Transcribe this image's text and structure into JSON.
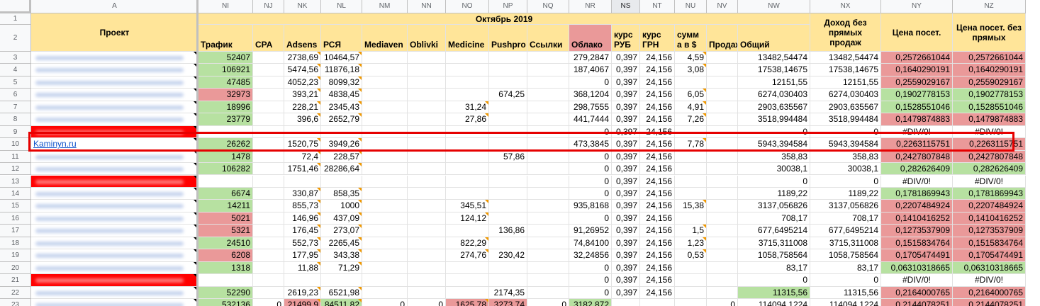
{
  "columns": [
    {
      "letter": "A",
      "width": 236
    },
    {
      "letter": "NI",
      "width": 77
    },
    {
      "letter": "NJ",
      "width": 44
    },
    {
      "letter": "NK",
      "width": 52
    },
    {
      "letter": "NL",
      "width": 58
    },
    {
      "letter": "NM",
      "width": 64
    },
    {
      "letter": "NN",
      "width": 54
    },
    {
      "letter": "NO",
      "width": 61
    },
    {
      "letter": "NP",
      "width": 54
    },
    {
      "letter": "NQ",
      "width": 59
    },
    {
      "letter": "NR",
      "width": 60
    },
    {
      "letter": "NS",
      "width": 40
    },
    {
      "letter": "NT",
      "width": 49
    },
    {
      "letter": "NU",
      "width": 45
    },
    {
      "letter": "NV",
      "width": 44
    },
    {
      "letter": "NW",
      "width": 102
    },
    {
      "letter": "NX",
      "width": 100
    },
    {
      "letter": "NY",
      "width": 101
    },
    {
      "letter": "NZ",
      "width": 103
    }
  ],
  "selected_column": "NS",
  "header": {
    "project": "Проект",
    "month": "Октябрь 2019",
    "income_no_direct": "Доход без прямых продаж",
    "price_visit": "Цена посет.",
    "price_visit_no_direct": "Цена посет. без прямых",
    "sub": [
      "Трафик",
      "CPA",
      "Adsens",
      "РСЯ",
      "Mediaven",
      "Oblivki",
      "Medicine",
      "Pushpro",
      "Ссылки",
      "Облако",
      "курс РУБ",
      "курс ГРН",
      "сумм а в $",
      "Продаж",
      "Общий"
    ]
  },
  "colors": {
    "green": "#b7e1a1",
    "red": "#ea9999",
    "bright_red": "#ff0000",
    "header_yellow": "#ffe599",
    "highlight": "#e60000"
  },
  "rows": [
    {
      "n": "3",
      "project": "",
      "cells": [
        "52407",
        "",
        "2738,69",
        "10464,57",
        "",
        "",
        "",
        "",
        "",
        "279,2847",
        "0,397",
        "24,156",
        "4,59",
        "",
        "13482,54474",
        "13482,54474",
        "0,2572661044",
        "0,2572661044"
      ],
      "fill": {
        "0": "green",
        "16": "red",
        "17": "red"
      }
    },
    {
      "n": "4",
      "project": "",
      "cells": [
        "106921",
        "",
        "5474,56",
        "11876,18",
        "",
        "",
        "",
        "",
        "",
        "187,4067",
        "0,397",
        "24,156",
        "3,08",
        "",
        "17538,14675",
        "17538,14675",
        "0,1640290191",
        "0,1640290191"
      ],
      "fill": {
        "0": "green",
        "16": "red",
        "17": "red"
      }
    },
    {
      "n": "5",
      "project": "",
      "cells": [
        "47485",
        "",
        "4052,23",
        "8099,32",
        "",
        "",
        "",
        "",
        "",
        "0",
        "0,397",
        "24,156",
        "",
        "",
        "12151,55",
        "12151,55",
        "0,2559029167",
        "0,2559029167"
      ],
      "fill": {
        "0": "green",
        "16": "red",
        "17": "red"
      }
    },
    {
      "n": "6",
      "project": "",
      "cells": [
        "32973",
        "",
        "393,21",
        "4838,45",
        "",
        "",
        "",
        "674,25",
        "",
        "368,1204",
        "0,397",
        "24,156",
        "6,05",
        "",
        "6274,030403",
        "6274,030403",
        "0,1902778153",
        "0,1902778153"
      ],
      "fill": {
        "0": "red",
        "16": "green",
        "17": "green"
      }
    },
    {
      "n": "7",
      "project": "",
      "cells": [
        "18996",
        "",
        "228,21",
        "2345,43",
        "",
        "",
        "31,24",
        "",
        "",
        "298,7555",
        "0,397",
        "24,156",
        "4,91",
        "",
        "2903,635567",
        "2903,635567",
        "0,1528551046",
        "0,1528551046"
      ],
      "fill": {
        "0": "green",
        "16": "green",
        "17": "green"
      }
    },
    {
      "n": "8",
      "project": "",
      "cells": [
        "23779",
        "",
        "396,6",
        "2652,79",
        "",
        "",
        "27,86",
        "",
        "",
        "441,7444",
        "0,397",
        "24,156",
        "7,26",
        "",
        "3518,994484",
        "3518,994484",
        "0,1479874883",
        "0,1479874883"
      ],
      "fill": {
        "0": "green",
        "16": "red",
        "17": "red"
      }
    },
    {
      "n": "9",
      "project": "",
      "cells": [
        "",
        "",
        "",
        "",
        "",
        "",
        "",
        "",
        "",
        "0",
        "0,397",
        "24,156",
        "",
        "",
        "0",
        "0",
        "#DIV/0!",
        "#DIV/0!"
      ],
      "fill": {},
      "redbar": true
    },
    {
      "n": "10",
      "project": "Kaminyn.ru",
      "cells": [
        "26262",
        "",
        "1520,75",
        "3949,26",
        "",
        "",
        "",
        "",
        "",
        "473,3845",
        "0,397",
        "24,156",
        "7,78",
        "",
        "5943,394584",
        "5943,394584",
        "0,2263115751",
        "0,2263115751"
      ],
      "fill": {
        "0": "green",
        "16": "red",
        "17": "red"
      },
      "link": true
    },
    {
      "n": "11",
      "project": "",
      "cells": [
        "1478",
        "",
        "72,4",
        "228,57",
        "",
        "",
        "",
        "57,86",
        "",
        "0",
        "0,397",
        "24,156",
        "",
        "",
        "358,83",
        "358,83",
        "0,2427807848",
        "0,2427807848"
      ],
      "fill": {
        "0": "green",
        "16": "red",
        "17": "red"
      }
    },
    {
      "n": "12",
      "project": "",
      "cells": [
        "106282",
        "",
        "1751,46",
        "28286,64",
        "",
        "",
        "",
        "",
        "",
        "0",
        "0,397",
        "24,156",
        "",
        "",
        "30038,1",
        "30038,1",
        "0,282626409",
        "0,282626409"
      ],
      "fill": {
        "0": "green",
        "16": "green",
        "17": "green"
      }
    },
    {
      "n": "13",
      "project": "",
      "cells": [
        "",
        "",
        "",
        "",
        "",
        "",
        "",
        "",
        "",
        "0",
        "0,397",
        "24,156",
        "",
        "",
        "0",
        "0",
        "#DIV/0!",
        "#DIV/0!"
      ],
      "fill": {},
      "redbar": true
    },
    {
      "n": "14",
      "project": "",
      "cells": [
        "6674",
        "",
        "330,87",
        "858,35",
        "",
        "",
        "",
        "",
        "",
        "0",
        "0,397",
        "24,156",
        "",
        "",
        "1189,22",
        "1189,22",
        "0,1781869943",
        "0,1781869943"
      ],
      "fill": {
        "0": "green",
        "16": "green",
        "17": "green"
      }
    },
    {
      "n": "15",
      "project": "",
      "cells": [
        "14211",
        "",
        "855,73",
        "1000",
        "",
        "",
        "345,51",
        "",
        "",
        "935,8168",
        "0,397",
        "24,156",
        "15,38",
        "",
        "3137,056826",
        "3137,056826",
        "0,2207484924",
        "0,2207484924"
      ],
      "fill": {
        "0": "green",
        "16": "red",
        "17": "red"
      }
    },
    {
      "n": "16",
      "project": "",
      "cells": [
        "5021",
        "",
        "146,96",
        "437,09",
        "",
        "",
        "124,12",
        "",
        "",
        "0",
        "0,397",
        "24,156",
        "",
        "",
        "708,17",
        "708,17",
        "0,1410416252",
        "0,1410416252"
      ],
      "fill": {
        "0": "red",
        "16": "red",
        "17": "red"
      }
    },
    {
      "n": "17",
      "project": "",
      "cells": [
        "5321",
        "",
        "176,45",
        "273,07",
        "",
        "",
        "",
        "136,86",
        "",
        "91,26952",
        "0,397",
        "24,156",
        "1,5",
        "",
        "677,6495214",
        "677,6495214",
        "0,1273537909",
        "0,1273537909"
      ],
      "fill": {
        "0": "red",
        "16": "red",
        "17": "red"
      }
    },
    {
      "n": "18",
      "project": "",
      "cells": [
        "24510",
        "",
        "552,73",
        "2265,45",
        "",
        "",
        "822,29",
        "",
        "",
        "74,84100",
        "0,397",
        "24,156",
        "1,23",
        "",
        "3715,311008",
        "3715,311008",
        "0,1515834764",
        "0,1515834764"
      ],
      "fill": {
        "0": "green",
        "16": "red",
        "17": "red"
      }
    },
    {
      "n": "19",
      "project": "",
      "cells": [
        "6208",
        "",
        "177,95",
        "343,38",
        "",
        "",
        "274,76",
        "230,42",
        "",
        "32,24856",
        "0,397",
        "24,156",
        "0,53",
        "",
        "1058,758564",
        "1058,758564",
        "0,1705474491",
        "0,1705474491"
      ],
      "fill": {
        "0": "red",
        "16": "red",
        "17": "red"
      }
    },
    {
      "n": "20",
      "project": "",
      "cells": [
        "1318",
        "",
        "11,88",
        "71,29",
        "",
        "",
        "",
        "",
        "",
        "0",
        "0,397",
        "24,156",
        "",
        "",
        "83,17",
        "83,17",
        "0,06310318665",
        "0,06310318665"
      ],
      "fill": {
        "0": "green",
        "16": "green",
        "17": "green"
      }
    },
    {
      "n": "21",
      "project": "",
      "cells": [
        "",
        "",
        "",
        "",
        "",
        "",
        "",
        "",
        "",
        "0",
        "0,397",
        "24,156",
        "",
        "",
        "0",
        "0",
        "#DIV/0!",
        "#DIV/0!"
      ],
      "fill": {},
      "redbar": true
    },
    {
      "n": "22",
      "project": "",
      "cells": [
        "52290",
        "",
        "2619,23",
        "6521,98",
        "",
        "",
        "",
        "2174,35",
        "",
        "0",
        "0,397",
        "24,156",
        "",
        "",
        "11315,56",
        "11315,56",
        "0,2164000765",
        "0,2164000765"
      ],
      "fill": {
        "0": "green",
        "14": "green",
        "16": "red",
        "17": "red"
      }
    },
    {
      "n": "23",
      "project": "",
      "cells": [
        "532136",
        "0",
        "21499,9",
        "84511,82",
        "0",
        "0",
        "1625,78",
        "3273,74",
        "0",
        "3182,872",
        "",
        "",
        "",
        "0",
        "114094,1224",
        "114094,1224",
        "0,2144078251",
        "0,2144078251"
      ],
      "fill": {
        "0": "green",
        "2": "red",
        "3": "green",
        "6": "red",
        "7": "red",
        "9": "green",
        "16": "red",
        "17": "red"
      }
    }
  ]
}
